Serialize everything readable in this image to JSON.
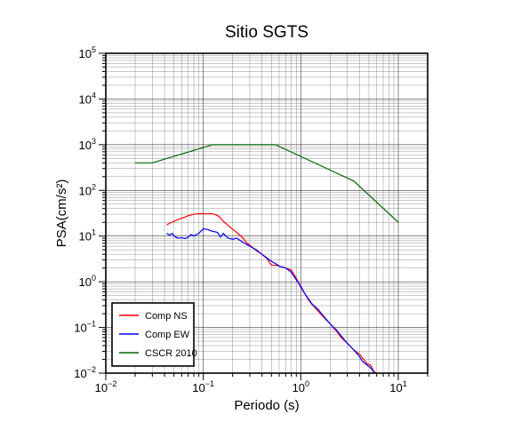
{
  "chart_data": {
    "type": "line",
    "title": "Sitio SGTS",
    "xlabel": "Periodo (s)",
    "ylabel": "PSA(cm/s²)",
    "xscale": "log",
    "yscale": "log",
    "xlim": [
      0.01,
      20
    ],
    "ylim": [
      0.01,
      100000
    ],
    "grid": true,
    "legend_position": "bottom-left",
    "x_ticks": [
      {
        "value": 0.01,
        "base": "10",
        "exp": "−2"
      },
      {
        "value": 0.1,
        "base": "10",
        "exp": "−1"
      },
      {
        "value": 1,
        "base": "10",
        "exp": "0"
      },
      {
        "value": 10,
        "base": "10",
        "exp": "1"
      }
    ],
    "y_ticks": [
      {
        "value": 0.01,
        "base": "10",
        "exp": "−2"
      },
      {
        "value": 0.1,
        "base": "10",
        "exp": "−1"
      },
      {
        "value": 1,
        "base": "10",
        "exp": "0"
      },
      {
        "value": 10,
        "base": "10",
        "exp": "1"
      },
      {
        "value": 100,
        "base": "10",
        "exp": "2"
      },
      {
        "value": 1000,
        "base": "10",
        "exp": "3"
      },
      {
        "value": 10000,
        "base": "10",
        "exp": "4"
      },
      {
        "value": 100000,
        "base": "10",
        "exp": "5"
      }
    ],
    "series": [
      {
        "name": "Comp NS",
        "color": "#ff0000",
        "points": [
          [
            0.042,
            17.5
          ],
          [
            0.045,
            19
          ],
          [
            0.05,
            21
          ],
          [
            0.055,
            23
          ],
          [
            0.06,
            24.5
          ],
          [
            0.065,
            26
          ],
          [
            0.07,
            28
          ],
          [
            0.075,
            29
          ],
          [
            0.08,
            30
          ],
          [
            0.09,
            31
          ],
          [
            0.1,
            31
          ],
          [
            0.11,
            30.5
          ],
          [
            0.12,
            31
          ],
          [
            0.13,
            30
          ],
          [
            0.14,
            28
          ],
          [
            0.15,
            25
          ],
          [
            0.16,
            21
          ],
          [
            0.18,
            17
          ],
          [
            0.2,
            14
          ],
          [
            0.22,
            12
          ],
          [
            0.25,
            9.5
          ],
          [
            0.28,
            7
          ],
          [
            0.3,
            6.3
          ],
          [
            0.35,
            4.8
          ],
          [
            0.4,
            4
          ],
          [
            0.45,
            3.2
          ],
          [
            0.5,
            2.3
          ],
          [
            0.55,
            2.3
          ],
          [
            0.6,
            2.2
          ],
          [
            0.7,
            2
          ],
          [
            0.8,
            1.8
          ],
          [
            0.9,
            1.2
          ],
          [
            1.0,
            0.75
          ],
          [
            1.1,
            0.55
          ],
          [
            1.2,
            0.4
          ],
          [
            1.3,
            0.32
          ],
          [
            1.5,
            0.23
          ],
          [
            1.7,
            0.17
          ],
          [
            2.0,
            0.12
          ],
          [
            2.3,
            0.085
          ],
          [
            2.6,
            0.06
          ],
          [
            3.0,
            0.045
          ],
          [
            3.5,
            0.032
          ],
          [
            4.0,
            0.026
          ],
          [
            4.5,
            0.019
          ],
          [
            4.8,
            0.016
          ],
          [
            5.2,
            0.015
          ],
          [
            5.6,
            0.011
          ],
          [
            5.9,
            0.01
          ]
        ]
      },
      {
        "name": "Comp EW",
        "color": "#0000ff",
        "points": [
          [
            0.042,
            11.5
          ],
          [
            0.045,
            10.5
          ],
          [
            0.048,
            11.5
          ],
          [
            0.05,
            10
          ],
          [
            0.055,
            9
          ],
          [
            0.06,
            9.2
          ],
          [
            0.065,
            8.8
          ],
          [
            0.07,
            9.5
          ],
          [
            0.075,
            10.8
          ],
          [
            0.08,
            10
          ],
          [
            0.09,
            11.5
          ],
          [
            0.1,
            14.5
          ],
          [
            0.11,
            14
          ],
          [
            0.12,
            13
          ],
          [
            0.13,
            12.5
          ],
          [
            0.14,
            12
          ],
          [
            0.15,
            9.5
          ],
          [
            0.16,
            11.5
          ],
          [
            0.17,
            10
          ],
          [
            0.18,
            9
          ],
          [
            0.2,
            8.5
          ],
          [
            0.22,
            9
          ],
          [
            0.25,
            7.5
          ],
          [
            0.28,
            6.5
          ],
          [
            0.3,
            6
          ],
          [
            0.35,
            5
          ],
          [
            0.4,
            4
          ],
          [
            0.45,
            3.3
          ],
          [
            0.5,
            2.8
          ],
          [
            0.55,
            2.5
          ],
          [
            0.6,
            2.2
          ],
          [
            0.7,
            2
          ],
          [
            0.8,
            1.6
          ],
          [
            0.9,
            1.1
          ],
          [
            1.0,
            0.8
          ],
          [
            1.1,
            0.55
          ],
          [
            1.2,
            0.42
          ],
          [
            1.3,
            0.33
          ],
          [
            1.5,
            0.25
          ],
          [
            1.7,
            0.18
          ],
          [
            2.0,
            0.12
          ],
          [
            2.3,
            0.09
          ],
          [
            2.6,
            0.065
          ],
          [
            3.0,
            0.045
          ],
          [
            3.5,
            0.032
          ],
          [
            4.0,
            0.023
          ],
          [
            4.3,
            0.018
          ],
          [
            4.6,
            0.016
          ],
          [
            5.0,
            0.014
          ],
          [
            5.4,
            0.012
          ],
          [
            5.7,
            0.01
          ]
        ]
      },
      {
        "name": "CSCR 2010",
        "color": "#006400",
        "points": [
          [
            0.02,
            400
          ],
          [
            0.03,
            400
          ],
          [
            0.125,
            1000
          ],
          [
            0.55,
            1000
          ],
          [
            3.5,
            160
          ],
          [
            10,
            20
          ]
        ]
      }
    ]
  }
}
